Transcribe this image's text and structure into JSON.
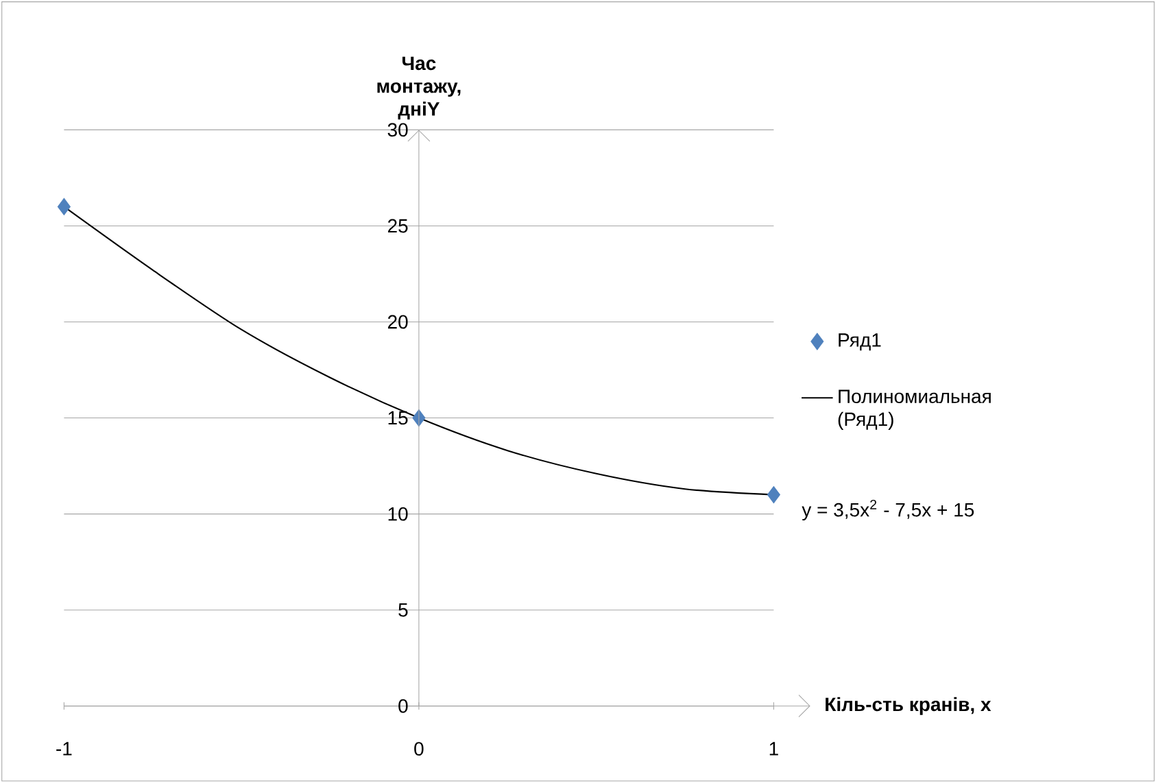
{
  "chart_data": {
    "type": "scatter",
    "xlabel": "Кіль-сть кранів, x",
    "ylabel": "Час монтажу, дніY",
    "xlim": [
      -1,
      1
    ],
    "xticks": [
      -1,
      0,
      1
    ],
    "ylim": [
      0,
      30
    ],
    "yticks": [
      0,
      5,
      10,
      15,
      20,
      25,
      30
    ],
    "grid": "y",
    "legend": "right",
    "series": [
      {
        "name": "Ряд1",
        "color": "#4f81bd",
        "marker": "diamond",
        "x": [
          -1,
          0,
          1
        ],
        "values": [
          26,
          15,
          11
        ]
      },
      {
        "type": "line",
        "name": "Полиномиальная (Ряд1)",
        "color": "#000000",
        "marker": "none",
        "line_style": "solid",
        "x": [
          -1,
          -0.75,
          -0.5,
          -0.25,
          0,
          0.25,
          0.5,
          0.75,
          1
        ],
        "values": [
          26,
          22.7,
          19.6,
          17.1,
          15,
          13.3,
          12.1,
          11.3,
          11
        ]
      }
    ],
    "annotations": [
      "y = 3,5x$^{2}$ - 7,5x + 15"
    ]
  }
}
